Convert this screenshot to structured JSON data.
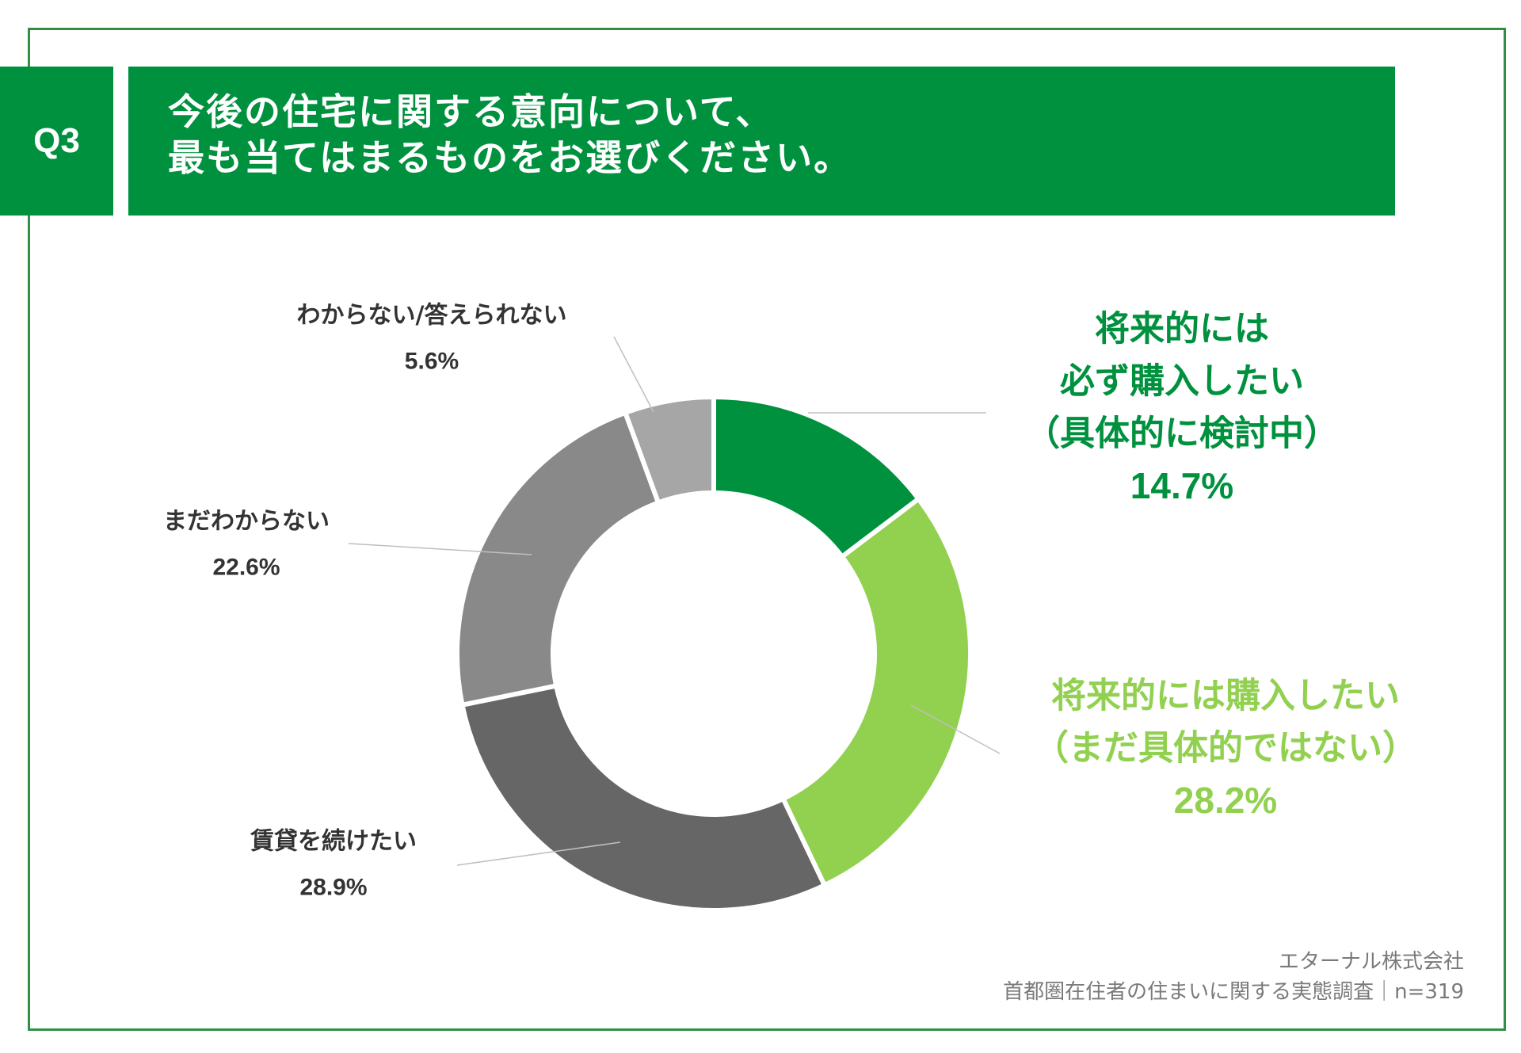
{
  "header": {
    "badge": "Q3",
    "title_line1": "今後の住宅に関する意向について、",
    "title_line2": "最も当てはまるものをお選びください。"
  },
  "chart_data": {
    "type": "pie",
    "style": "donut",
    "title": "今後の住宅に関する意向について、最も当てはまるものをお選びください。",
    "slices": [
      {
        "label_lines": [
          "将来的には",
          "必ず購入したい",
          "（具体的に検討中）"
        ],
        "value": 14.7,
        "value_label": "14.7%",
        "color": "#00913f",
        "label_color": "#00913f"
      },
      {
        "label_lines": [
          "将来的には購入したい",
          "（まだ具体的ではない）"
        ],
        "value": 28.2,
        "value_label": "28.2%",
        "color": "#92d050",
        "label_color": "#92d050"
      },
      {
        "label_lines": [
          "賃貸を続けたい"
        ],
        "value": 28.9,
        "value_label": "28.9%",
        "color": "#666666",
        "label_color": "#333333"
      },
      {
        "label_lines": [
          "まだわからない"
        ],
        "value": 22.6,
        "value_label": "22.6%",
        "color": "#898989",
        "label_color": "#333333"
      },
      {
        "label_lines": [
          "わからない/答えられない"
        ],
        "value": 5.6,
        "value_label": "5.6%",
        "color": "#a6a6a6",
        "label_color": "#333333"
      }
    ]
  },
  "footer": {
    "company": "エターナル株式会社",
    "survey": "首都圏在住者の住まいに関する実態調査｜n=319"
  },
  "colors": {
    "brand_green": "#00913f",
    "frame_green": "#2f8f45"
  }
}
